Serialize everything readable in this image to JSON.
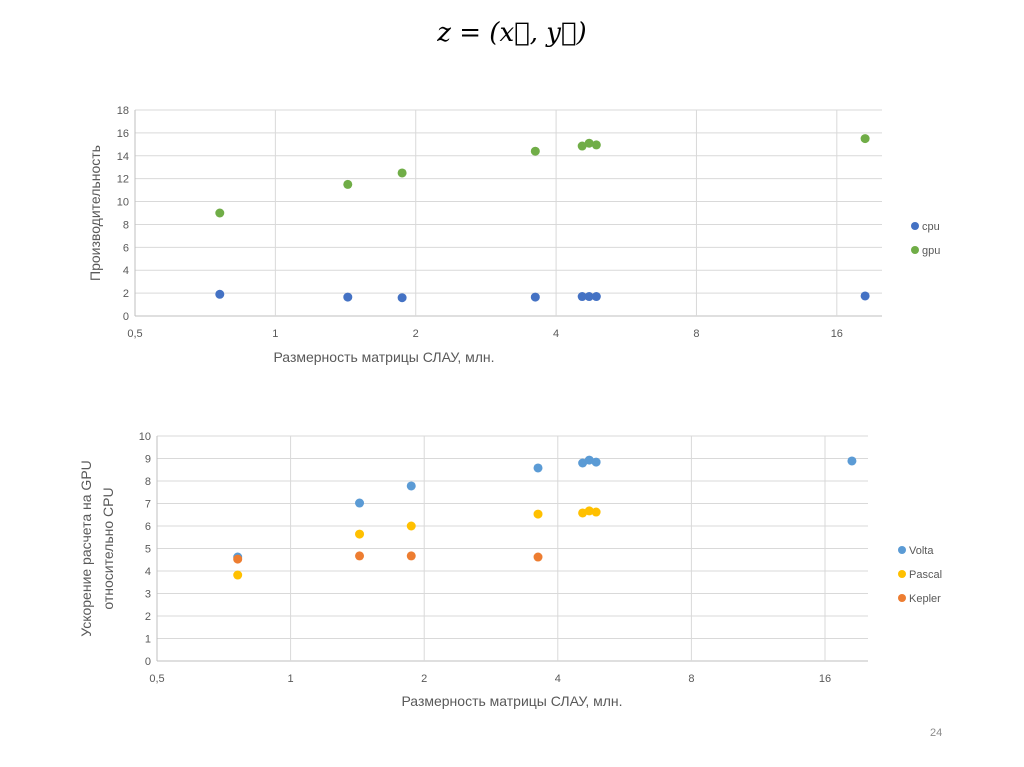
{
  "slide": {
    "title": "z = (x⃗, y⃗)",
    "number": "24"
  },
  "chart_data": [
    {
      "type": "scatter",
      "xlabel": "Размерность матрицы СЛАУ, млн.",
      "ylabel_lines": [
        "Производительность"
      ],
      "x_scale": "log2",
      "xlim": [
        0.5,
        20
      ],
      "ylim": [
        0,
        18
      ],
      "xticks": [
        0.5,
        1,
        2,
        4,
        8,
        16
      ],
      "xtick_labels": [
        "0,5",
        "1",
        "2",
        "4",
        "8",
        "16"
      ],
      "yticks": [
        0,
        2,
        4,
        6,
        8,
        10,
        12,
        14,
        16,
        18
      ],
      "grid": true,
      "legend": "right",
      "series": [
        {
          "name": "cpu",
          "color": "#4472c4",
          "x": [
            0.76,
            1.43,
            1.87,
            3.61,
            4.55,
            4.71,
            4.88,
            18.4
          ],
          "y": [
            1.9,
            1.65,
            1.6,
            1.65,
            1.7,
            1.7,
            1.7,
            1.75
          ]
        },
        {
          "name": "gpu",
          "color": "#70ad47",
          "x": [
            0.76,
            1.43,
            1.87,
            3.61,
            4.55,
            4.71,
            4.88,
            18.4
          ],
          "y": [
            9.0,
            11.5,
            12.5,
            14.4,
            14.85,
            15.1,
            14.95,
            15.5
          ]
        }
      ]
    },
    {
      "type": "scatter",
      "xlabel": "Размерность матрицы СЛАУ, млн.",
      "ylabel_lines": [
        "Ускорение расчета на GPU",
        "относительно CPU"
      ],
      "x_scale": "log2",
      "xlim": [
        0.5,
        20
      ],
      "ylim": [
        0,
        10
      ],
      "xticks": [
        0.5,
        1,
        2,
        4,
        8,
        16
      ],
      "xtick_labels": [
        "0,5",
        "1",
        "2",
        "4",
        "8",
        "16"
      ],
      "yticks": [
        0,
        1,
        2,
        3,
        4,
        5,
        6,
        7,
        8,
        9,
        10
      ],
      "grid": true,
      "legend": "right",
      "series": [
        {
          "name": "Volta",
          "color": "#5b9bd5",
          "x": [
            0.76,
            1.43,
            1.87,
            3.61,
            4.55,
            4.71,
            4.88,
            18.4
          ],
          "y": [
            4.62,
            7.02,
            7.78,
            8.58,
            8.8,
            8.93,
            8.84,
            8.89
          ]
        },
        {
          "name": "Pascal",
          "color": "#ffc000",
          "x": [
            0.76,
            1.43,
            1.87,
            3.61,
            4.55,
            4.71,
            4.88
          ],
          "y": [
            3.82,
            5.64,
            6.0,
            6.53,
            6.58,
            6.67,
            6.62
          ]
        },
        {
          "name": "Kepler",
          "color": "#ed7d31",
          "x": [
            0.76,
            1.43,
            1.87,
            3.61
          ],
          "y": [
            4.53,
            4.67,
            4.67,
            4.62
          ]
        }
      ]
    }
  ]
}
